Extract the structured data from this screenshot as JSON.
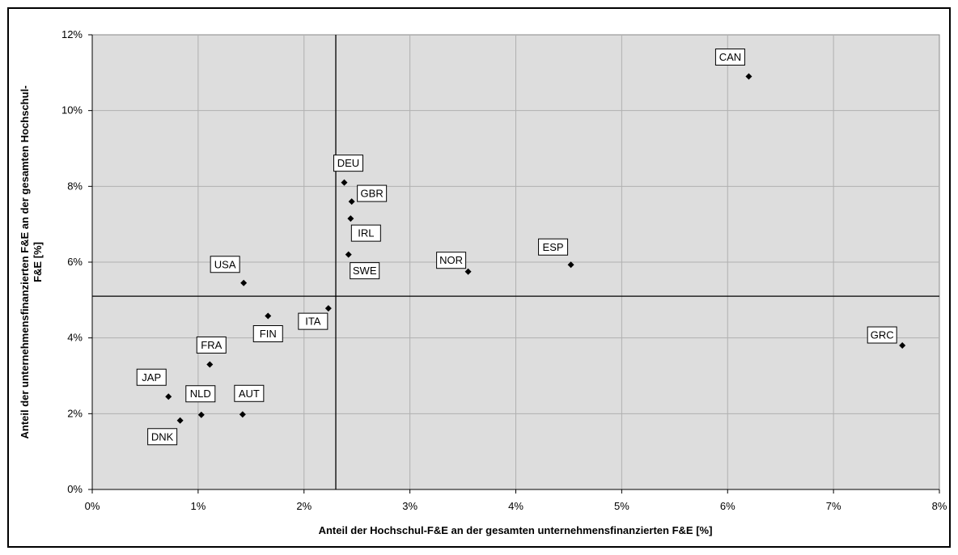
{
  "chart_data": {
    "type": "scatter",
    "title": "",
    "xlabel": "Anteil der Hochschul-F&E an der gesamten unternehmensfinanzierten F&E [%]",
    "ylabel_line1": "Anteil der unternehmensfinanzierten F&E an der gesamten Hochschul-",
    "ylabel_line2": "F&E [%]",
    "xlim": [
      0,
      8
    ],
    "ylim": [
      0,
      12
    ],
    "x_ticks": [
      0,
      1,
      2,
      3,
      4,
      5,
      6,
      7,
      8
    ],
    "y_ticks": [
      0,
      2,
      4,
      6,
      8,
      10,
      12
    ],
    "x_tick_labels": [
      "0%",
      "1%",
      "2%",
      "3%",
      "4%",
      "5%",
      "6%",
      "7%",
      "8%"
    ],
    "y_tick_labels": [
      "0%",
      "2%",
      "4%",
      "6%",
      "8%",
      "10%",
      "12%"
    ],
    "grid": true,
    "reference_lines": {
      "x": 2.3,
      "y": 5.1
    },
    "colors": {
      "plot_background": "#dddddd",
      "grid": "#b0b0b0",
      "marker": "#000000",
      "reference_line": "#000000"
    },
    "points": [
      {
        "label": "CAN",
        "x": 6.2,
        "y": 10.9
      },
      {
        "label": "DEU",
        "x": 2.38,
        "y": 8.1
      },
      {
        "label": "GBR",
        "x": 2.45,
        "y": 7.6
      },
      {
        "label": "IRL",
        "x": 2.44,
        "y": 7.15
      },
      {
        "label": "SWE",
        "x": 2.42,
        "y": 6.2
      },
      {
        "label": "NOR",
        "x": 3.55,
        "y": 5.75
      },
      {
        "label": "ESP",
        "x": 4.52,
        "y": 5.93
      },
      {
        "label": "USA",
        "x": 1.43,
        "y": 5.45
      },
      {
        "label": "FIN",
        "x": 1.66,
        "y": 4.58
      },
      {
        "label": "ITA",
        "x": 2.23,
        "y": 4.78
      },
      {
        "label": "GRC",
        "x": 7.65,
        "y": 3.8
      },
      {
        "label": "FRA",
        "x": 1.11,
        "y": 3.3
      },
      {
        "label": "JAP",
        "x": 0.72,
        "y": 2.45
      },
      {
        "label": "NLD",
        "x": 1.03,
        "y": 1.97
      },
      {
        "label": "AUT",
        "x": 1.42,
        "y": 1.98
      },
      {
        "label": "DNK",
        "x": 0.83,
        "y": 1.82
      }
    ]
  }
}
